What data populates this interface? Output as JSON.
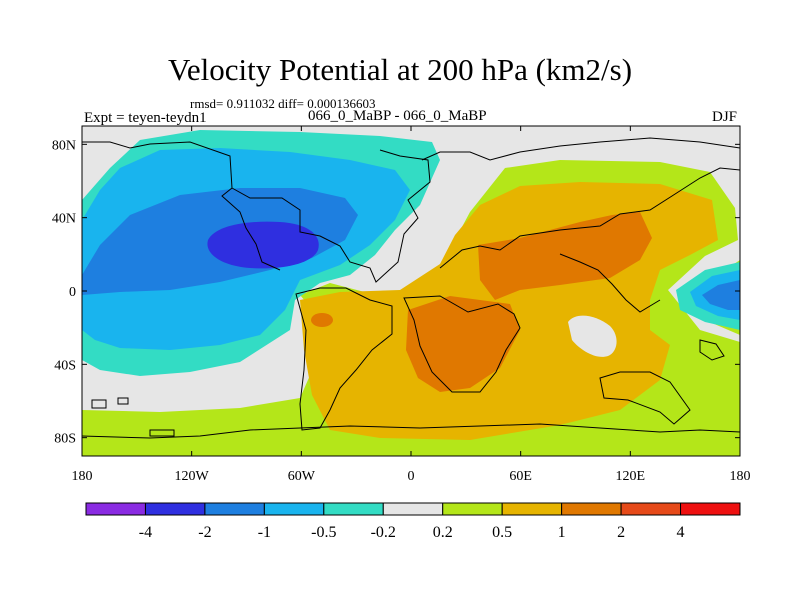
{
  "title": "Velocity Potential at 200 hPa (km2/s)",
  "stats": "rmsd= 0.911032 diff= 0.000136603",
  "experiment_label": "Expt = teyen-teydn1",
  "experiment_names": "066_0_MaBP - 066_0_MaBP",
  "season": "DJF",
  "chart_data": {
    "type": "heatmap",
    "title": "Velocity Potential at 200 hPa (km2/s)",
    "x_ticks": [
      "180",
      "120W",
      "60W",
      "0",
      "60E",
      "120E",
      "180"
    ],
    "y_ticks": [
      "80N",
      "40N",
      "0",
      "40S",
      "80S"
    ],
    "xlim": [
      -180,
      180
    ],
    "ylim": [
      -90,
      90
    ],
    "colorbar": {
      "levels": [
        "-4",
        "-2",
        "-1",
        "-0.5",
        "-0.2",
        "0.2",
        "0.5",
        "1",
        "2",
        "4"
      ],
      "colors": [
        "#8a2be2",
        "#2f2fe0",
        "#1e7fe0",
        "#19b4ee",
        "#33dcc4",
        "#e6e6e6",
        "#b4e619",
        "#e6b400",
        "#e07800",
        "#e64a19",
        "#ee1010"
      ]
    }
  }
}
